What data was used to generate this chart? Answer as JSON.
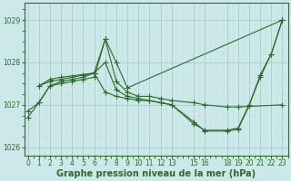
{
  "series": [
    {
      "x": [
        0,
        1,
        2,
        3,
        4,
        5,
        6,
        7,
        8,
        9,
        10,
        11,
        12,
        13,
        15,
        16,
        18,
        19,
        23
      ],
      "y": [
        1026.85,
        1027.05,
        1027.45,
        1027.5,
        1027.55,
        1027.6,
        1027.65,
        1028.55,
        1027.55,
        1027.3,
        1027.2,
        1027.2,
        1027.15,
        1027.1,
        1027.05,
        1027.0,
        1026.95,
        1026.95,
        1027.0
      ]
    },
    {
      "x": [
        1,
        2,
        3,
        4,
        5,
        6,
        7,
        8,
        9,
        10,
        11,
        12,
        13,
        15,
        16,
        18,
        19,
        20,
        21,
        22,
        23
      ],
      "y": [
        1027.45,
        1027.55,
        1027.6,
        1027.65,
        1027.7,
        1027.75,
        1028.0,
        1027.35,
        1027.2,
        1027.15,
        1027.1,
        1027.05,
        1027.0,
        1026.55,
        1026.4,
        1026.4,
        1026.45,
        1027.0,
        1027.65,
        1028.2,
        1029.0
      ]
    },
    {
      "x": [
        1,
        2,
        3,
        6,
        7,
        8,
        9,
        23
      ],
      "y": [
        1027.45,
        1027.6,
        1027.65,
        1027.75,
        1028.55,
        1028.0,
        1027.4,
        1029.0
      ]
    },
    {
      "x": [
        0,
        1,
        2,
        3,
        4,
        5,
        6,
        7,
        8,
        9,
        10,
        11,
        12,
        13,
        15,
        16,
        18,
        19,
        20,
        21,
        22,
        23
      ],
      "y": [
        1026.7,
        1027.05,
        1027.45,
        1027.55,
        1027.6,
        1027.65,
        1027.75,
        1027.3,
        1027.2,
        1027.15,
        1027.1,
        1027.1,
        1027.05,
        1027.0,
        1026.6,
        1026.38,
        1026.38,
        1026.42,
        1026.98,
        1027.7,
        1028.2,
        1029.0
      ]
    }
  ],
  "ylim": [
    1025.8,
    1029.4
  ],
  "yticks": [
    1026,
    1027,
    1028,
    1029
  ],
  "xtick_positions": [
    0,
    1,
    2,
    3,
    4,
    5,
    6,
    7,
    8,
    9,
    10,
    11,
    12,
    13,
    15,
    16,
    18,
    19,
    20,
    21,
    22,
    23
  ],
  "xtick_labels": [
    "0",
    "1",
    "2",
    "3",
    "4",
    "5",
    "6",
    "7",
    "8",
    "9",
    "10",
    "11",
    "12",
    "13",
    "15",
    "16",
    "18",
    "19",
    "20",
    "21",
    "22",
    "23"
  ],
  "xlim": [
    -0.3,
    23.5
  ],
  "line_color": "#2d6a2d",
  "marker": "+",
  "marker_size": 4,
  "bg_color": "#cce8e8",
  "grid_major_color": "#b0d0d0",
  "grid_minor_color": "#daf0f0",
  "xlabel": "Graphe pression niveau de la mer (hPa)",
  "xlabel_color": "#2d6a2d",
  "tick_color": "#2d6a2d",
  "label_fontsize": 7.0,
  "tick_fontsize": 5.5
}
